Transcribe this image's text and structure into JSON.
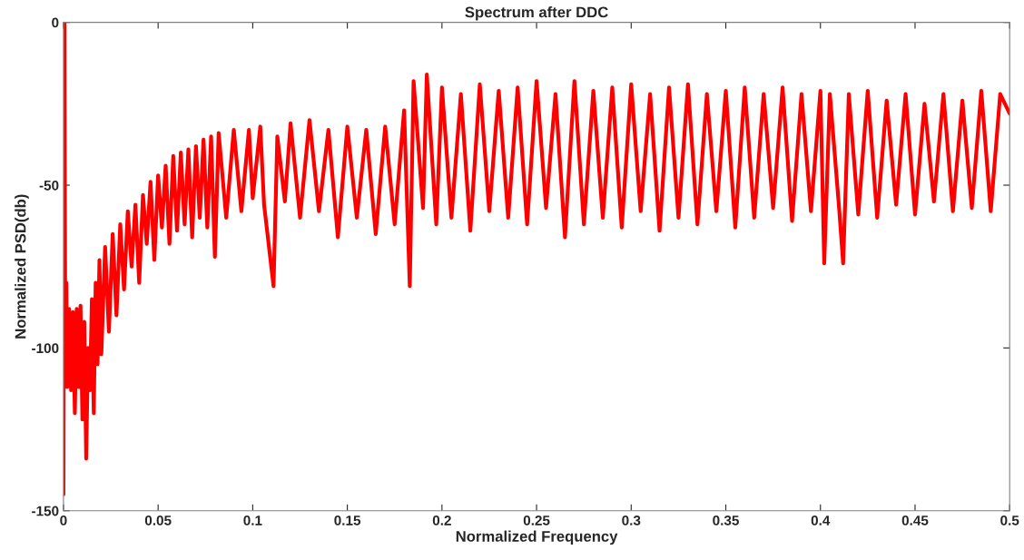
{
  "chart_data": {
    "type": "line",
    "title": "Spectrum after DDC",
    "xlabel": "Normalized Frequency",
    "ylabel": "Normalized PSD(db)",
    "xlim": [
      0,
      0.5
    ],
    "xticks": [
      0,
      0.05,
      0.1,
      0.15,
      0.2,
      0.25,
      0.3,
      0.35,
      0.4,
      0.45,
      0.5
    ],
    "ylim": [
      -150,
      0
    ],
    "yticks": [
      -150,
      -100,
      -50,
      0
    ],
    "grid": false,
    "marker": "none",
    "line_style": "solid",
    "series": [
      {
        "color": "#ff0000",
        "x": [
          0,
          0.0005,
          0.001,
          0.0015,
          0.002,
          0.003,
          0.004,
          0.005,
          0.006,
          0.007,
          0.008,
          0.009,
          0.01,
          0.011,
          0.012,
          0.013,
          0.014,
          0.015,
          0.016,
          0.017,
          0.018,
          0.019,
          0.02,
          0.022,
          0.024,
          0.026,
          0.028,
          0.03,
          0.032,
          0.034,
          0.036,
          0.038,
          0.04,
          0.042,
          0.044,
          0.046,
          0.048,
          0.05,
          0.052,
          0.054,
          0.056,
          0.058,
          0.06,
          0.062,
          0.064,
          0.066,
          0.068,
          0.07,
          0.072,
          0.074,
          0.076,
          0.078,
          0.08,
          0.082,
          0.086,
          0.09,
          0.094,
          0.098,
          0.1,
          0.104,
          0.106,
          0.111,
          0.113,
          0.117,
          0.12,
          0.125,
          0.13,
          0.135,
          0.14,
          0.145,
          0.15,
          0.155,
          0.16,
          0.165,
          0.17,
          0.175,
          0.18,
          0.183,
          0.185,
          0.19,
          0.192,
          0.197,
          0.2,
          0.205,
          0.21,
          0.215,
          0.22,
          0.225,
          0.23,
          0.235,
          0.24,
          0.245,
          0.25,
          0.255,
          0.26,
          0.265,
          0.27,
          0.275,
          0.28,
          0.285,
          0.29,
          0.295,
          0.3,
          0.305,
          0.31,
          0.315,
          0.32,
          0.325,
          0.33,
          0.335,
          0.34,
          0.345,
          0.35,
          0.355,
          0.36,
          0.365,
          0.37,
          0.375,
          0.38,
          0.385,
          0.39,
          0.395,
          0.4,
          0.402,
          0.405,
          0.41,
          0.412,
          0.415,
          0.42,
          0.425,
          0.43,
          0.435,
          0.44,
          0.445,
          0.45,
          0.455,
          0.46,
          0.465,
          0.47,
          0.475,
          0.48,
          0.485,
          0.49,
          0.495,
          0.5
        ],
        "values": [
          -145,
          0,
          -110,
          -80,
          -112,
          -88,
          -113,
          -89,
          -120,
          -88,
          -112,
          -87,
          -122,
          -92,
          -134,
          -100,
          -113,
          -85,
          -120,
          -80,
          -105,
          -73,
          -102,
          -69,
          -95,
          -65,
          -90,
          -62,
          -82,
          -58,
          -75,
          -56,
          -80,
          -53,
          -68,
          -49,
          -73,
          -47,
          -63,
          -44,
          -68,
          -41,
          -64,
          -40,
          -62,
          -39,
          -66,
          -38,
          -60,
          -36,
          -63,
          -35,
          -72,
          -34,
          -60,
          -33,
          -58,
          -33,
          -54,
          -32,
          -56,
          -81,
          -35,
          -55,
          -31,
          -60,
          -30,
          -58,
          -33,
          -66,
          -32,
          -60,
          -33,
          -65,
          -32,
          -62,
          -27,
          -81,
          -18,
          -57,
          -16,
          -62,
          -20,
          -60,
          -22,
          -64,
          -19,
          -58,
          -21,
          -60,
          -20,
          -62,
          -18,
          -57,
          -22,
          -66,
          -18,
          -62,
          -21,
          -60,
          -20,
          -63,
          -19,
          -58,
          -22,
          -64,
          -20,
          -60,
          -19,
          -62,
          -22,
          -58,
          -21,
          -63,
          -20,
          -60,
          -22,
          -57,
          -20,
          -61,
          -22,
          -58,
          -21,
          -74,
          -22,
          -58,
          -74,
          -22,
          -59,
          -21,
          -60,
          -24,
          -56,
          -22,
          -59,
          -25,
          -55,
          -22,
          -58,
          -24,
          -57,
          -21,
          -58,
          -22,
          -28
        ]
      }
    ]
  }
}
